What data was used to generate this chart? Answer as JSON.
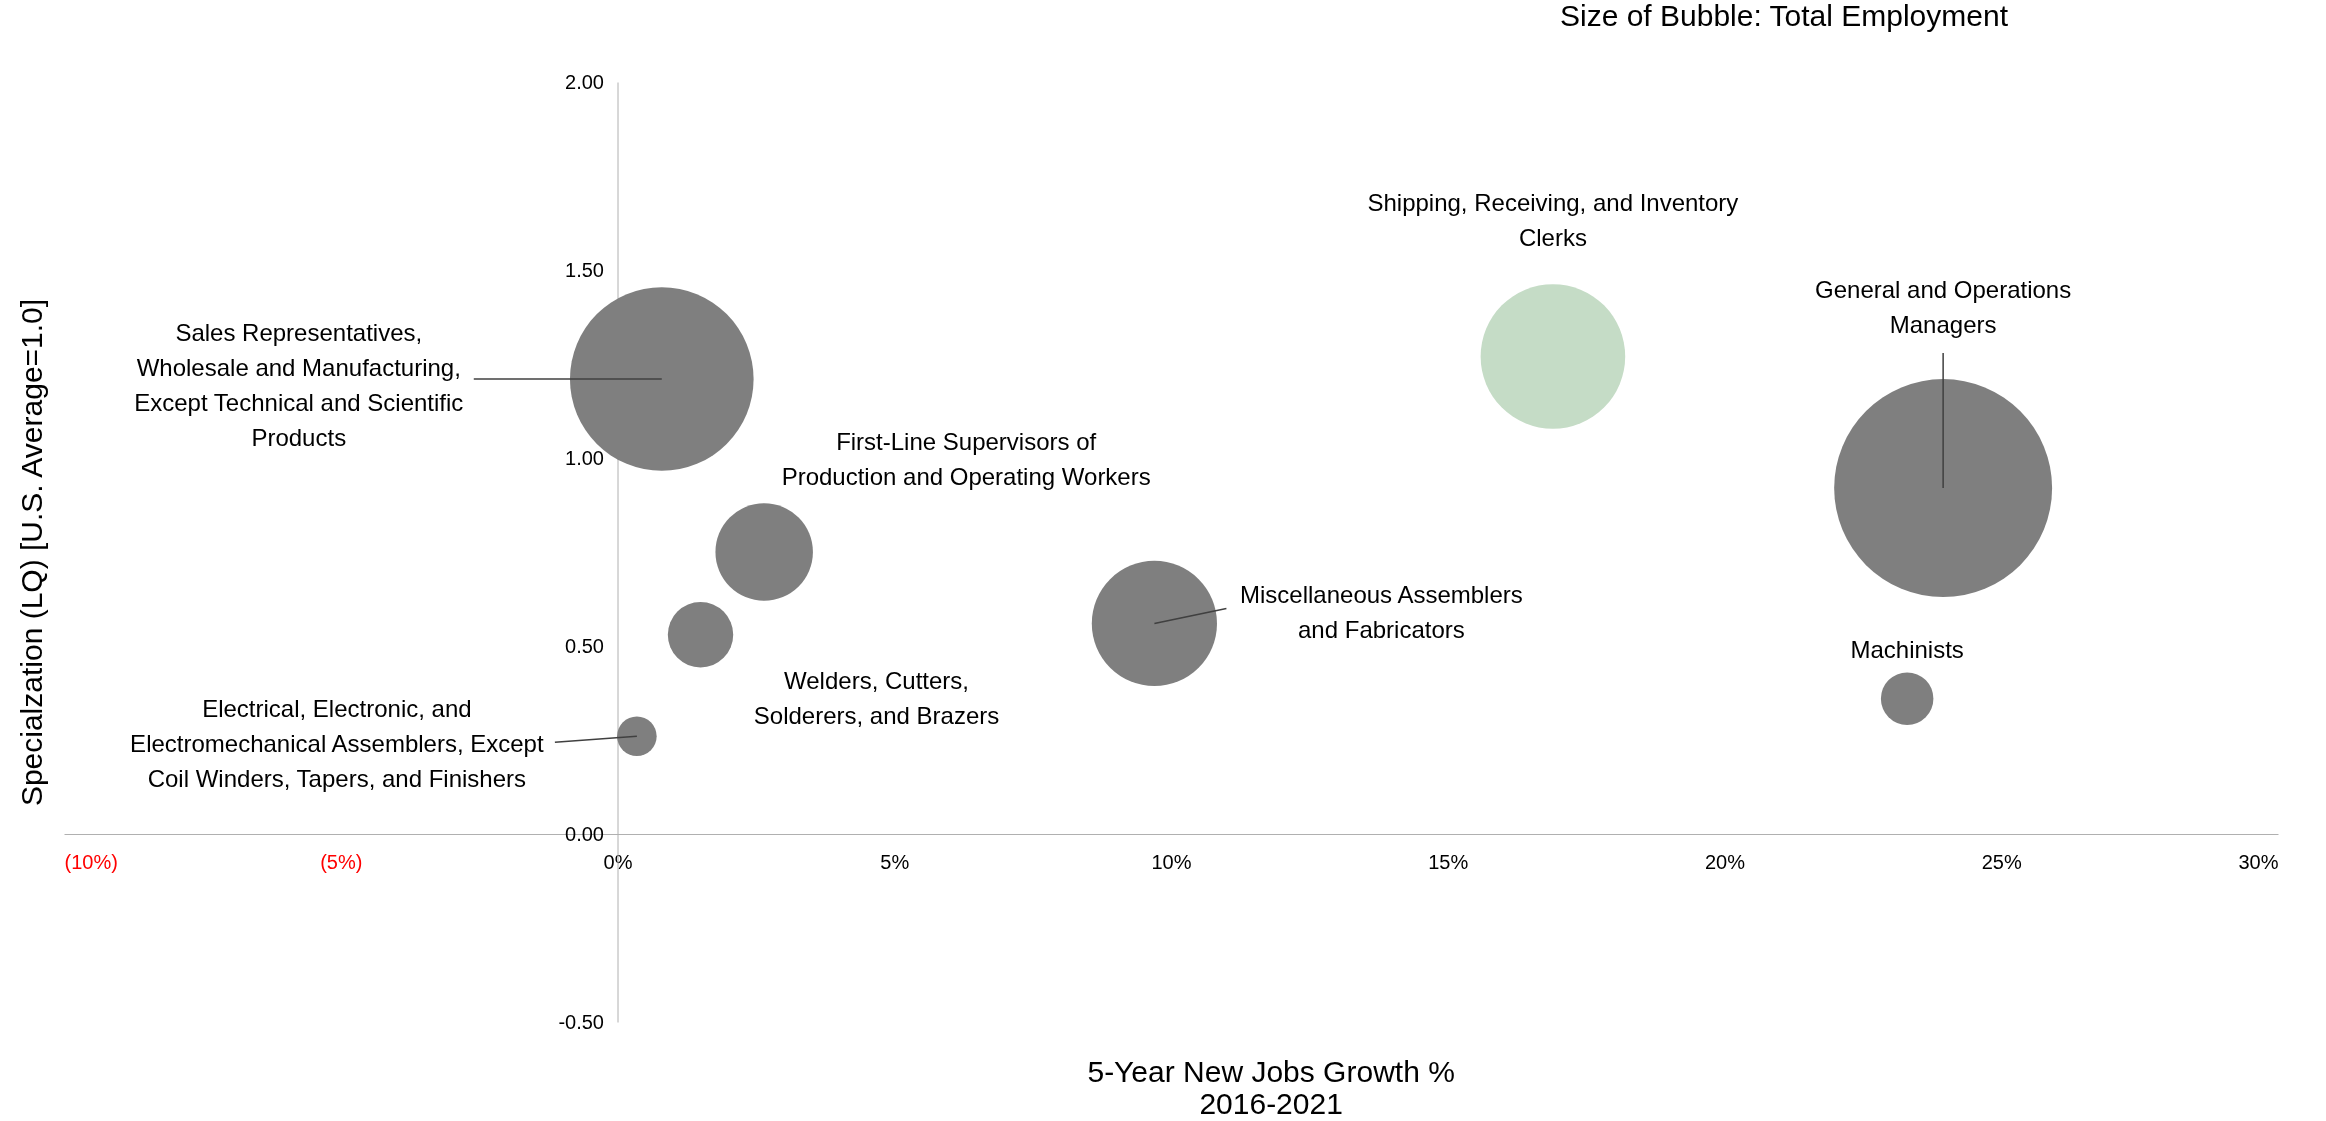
{
  "chart_data": {
    "type": "bubble",
    "title": "Size of Bubble: Total Employment",
    "xlabel": "5-Year New Jobs Growth %\n2016-2021",
    "ylabel": "Specialzation (LQ) [U.S. Average=1.0]",
    "xlim": [
      -10,
      30
    ],
    "xticks": [
      {
        "value": -10,
        "label": "(10%)"
      },
      {
        "value": -5,
        "label": "(5%)"
      },
      {
        "value": 0,
        "label": "0%"
      },
      {
        "value": 5,
        "label": "5%"
      },
      {
        "value": 10,
        "label": "10%"
      },
      {
        "value": 15,
        "label": "15%"
      },
      {
        "value": 20,
        "label": "20%"
      },
      {
        "value": 25,
        "label": "25%"
      },
      {
        "value": 30,
        "label": "30%"
      }
    ],
    "ylim": [
      -0.5,
      2.0
    ],
    "yticks": [
      {
        "value": -0.5,
        "label": "-0.50"
      },
      {
        "value": 0,
        "label": "0.00"
      },
      {
        "value": 0.5,
        "label": "0.50"
      },
      {
        "value": 1,
        "label": "1.00"
      },
      {
        "value": 1.5,
        "label": "1.50"
      },
      {
        "value": 2,
        "label": "2.00"
      }
    ],
    "legend": false,
    "series": [
      {
        "name": "Sales Representatives,\nWholesale and Manufacturing,\nExcept Technical and Scientific\nProducts",
        "color": "#7f7f7f",
        "x": [
          0.8
        ],
        "values": [
          1.21
        ],
        "sizes": [
          0.71
        ]
      },
      {
        "name": "First-Line Supervisors of\nProduction and Operating Workers",
        "color": "#7f7f7f",
        "x": [
          2.65
        ],
        "values": [
          0.75
        ],
        "sizes": [
          0.2
        ]
      },
      {
        "name": "Welders, Cutters,\nSolderers, and Brazers",
        "color": "#7f7f7f",
        "x": [
          1.5
        ],
        "values": [
          0.53
        ],
        "sizes": [
          0.09
        ]
      },
      {
        "name": "Electrical, Electronic, and\nElectromechanical Assemblers, Except\nCoil Winders, Tapers, and Finishers",
        "color": "#7f7f7f",
        "x": [
          0.35
        ],
        "values": [
          0.26
        ],
        "sizes": [
          0.033
        ]
      },
      {
        "name": "Miscellaneous Assemblers\nand Fabricators",
        "color": "#7f7f7f",
        "x": [
          9.7
        ],
        "values": [
          0.56
        ],
        "sizes": [
          0.33
        ]
      },
      {
        "name": "Shipping, Receiving, and Inventory\nClerks",
        "color": "#c5dcc6",
        "x": [
          16.9
        ],
        "values": [
          1.27
        ],
        "sizes": [
          0.44
        ]
      },
      {
        "name": "General and Operations\nManagers",
        "color": "#7f7f7f",
        "x": [
          23.95
        ],
        "values": [
          0.92
        ],
        "sizes": [
          1
        ]
      },
      {
        "name": "Machinists",
        "color": "#7f7f7f",
        "x": [
          23.3
        ],
        "values": [
          0.36
        ],
        "sizes": [
          0.058
        ]
      }
    ]
  }
}
